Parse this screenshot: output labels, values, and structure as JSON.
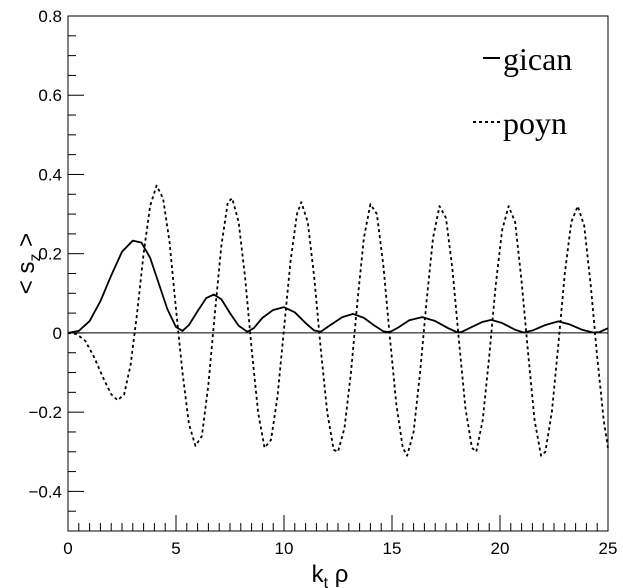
{
  "chart_data": {
    "type": "line",
    "title": "",
    "xlabel": {
      "main": "k",
      "sub": "t",
      "tail": " ρ"
    },
    "ylabel": {
      "open": "< s",
      "sub": "z",
      "close": " >"
    },
    "xlim": [
      0,
      25
    ],
    "ylim": [
      -0.5,
      0.8
    ],
    "x_ticks": [
      "0",
      "5",
      "10",
      "15",
      "20",
      "25"
    ],
    "y_ticks": [
      "−0.4",
      "−0.2",
      "0",
      "0.2",
      "0.4",
      "0.6",
      "0.8"
    ],
    "grid": false,
    "legend_position": "top-right",
    "zero_line": true,
    "series": [
      {
        "name": "gican",
        "style": "solid",
        "points": [
          [
            0,
            0
          ],
          [
            0.5,
            0.005
          ],
          [
            1.0,
            0.03
          ],
          [
            1.5,
            0.08
          ],
          [
            2.0,
            0.145
          ],
          [
            2.5,
            0.205
          ],
          [
            3.0,
            0.233
          ],
          [
            3.4,
            0.228
          ],
          [
            3.8,
            0.19
          ],
          [
            4.2,
            0.125
          ],
          [
            4.6,
            0.06
          ],
          [
            5.0,
            0.015
          ],
          [
            5.3,
            0.005
          ],
          [
            5.6,
            0.02
          ],
          [
            6.0,
            0.055
          ],
          [
            6.4,
            0.088
          ],
          [
            6.75,
            0.097
          ],
          [
            7.1,
            0.085
          ],
          [
            7.5,
            0.05
          ],
          [
            7.9,
            0.018
          ],
          [
            8.3,
            0.003
          ],
          [
            8.6,
            0.012
          ],
          [
            9.0,
            0.038
          ],
          [
            9.5,
            0.058
          ],
          [
            10.0,
            0.065
          ],
          [
            10.5,
            0.052
          ],
          [
            11.0,
            0.025
          ],
          [
            11.4,
            0.006
          ],
          [
            11.7,
            0.003
          ],
          [
            12.1,
            0.018
          ],
          [
            12.7,
            0.04
          ],
          [
            13.2,
            0.048
          ],
          [
            13.7,
            0.038
          ],
          [
            14.2,
            0.018
          ],
          [
            14.6,
            0.004
          ],
          [
            14.9,
            0.002
          ],
          [
            15.3,
            0.014
          ],
          [
            15.8,
            0.032
          ],
          [
            16.4,
            0.04
          ],
          [
            17.0,
            0.03
          ],
          [
            17.6,
            0.012
          ],
          [
            18.0,
            0.002
          ],
          [
            18.2,
            0.002
          ],
          [
            18.7,
            0.015
          ],
          [
            19.2,
            0.028
          ],
          [
            19.6,
            0.033
          ],
          [
            20.1,
            0.025
          ],
          [
            20.7,
            0.008
          ],
          [
            21.1,
            0.001
          ],
          [
            21.5,
            0.006
          ],
          [
            22.1,
            0.02
          ],
          [
            22.7,
            0.029
          ],
          [
            23.2,
            0.022
          ],
          [
            23.8,
            0.008
          ],
          [
            24.3,
            0.001
          ],
          [
            24.6,
            0.002
          ],
          [
            25.0,
            0.012
          ]
        ]
      },
      {
        "name": "poyn",
        "style": "dashed",
        "points": [
          [
            0,
            0
          ],
          [
            0.4,
            -0.003
          ],
          [
            0.8,
            -0.02
          ],
          [
            1.2,
            -0.06
          ],
          [
            1.6,
            -0.11
          ],
          [
            2.0,
            -0.155
          ],
          [
            2.3,
            -0.17
          ],
          [
            2.6,
            -0.155
          ],
          [
            2.9,
            -0.08
          ],
          [
            3.2,
            0.05
          ],
          [
            3.5,
            0.2
          ],
          [
            3.8,
            0.32
          ],
          [
            4.1,
            0.372
          ],
          [
            4.4,
            0.34
          ],
          [
            4.7,
            0.23
          ],
          [
            5.0,
            0.06
          ],
          [
            5.3,
            -0.1
          ],
          [
            5.6,
            -0.23
          ],
          [
            5.9,
            -0.285
          ],
          [
            6.2,
            -0.26
          ],
          [
            6.5,
            -0.13
          ],
          [
            6.8,
            0.05
          ],
          [
            7.1,
            0.22
          ],
          [
            7.4,
            0.33
          ],
          [
            7.6,
            0.34
          ],
          [
            7.9,
            0.28
          ],
          [
            8.2,
            0.14
          ],
          [
            8.5,
            -0.04
          ],
          [
            8.8,
            -0.2
          ],
          [
            9.1,
            -0.29
          ],
          [
            9.4,
            -0.27
          ],
          [
            9.7,
            -0.16
          ],
          [
            10.0,
            0.01
          ],
          [
            10.3,
            0.18
          ],
          [
            10.6,
            0.3
          ],
          [
            10.8,
            0.33
          ],
          [
            11.1,
            0.28
          ],
          [
            11.4,
            0.14
          ],
          [
            11.7,
            -0.04
          ],
          [
            12.0,
            -0.2
          ],
          [
            12.3,
            -0.295
          ],
          [
            12.5,
            -0.3
          ],
          [
            12.8,
            -0.24
          ],
          [
            13.1,
            -0.1
          ],
          [
            13.4,
            0.08
          ],
          [
            13.7,
            0.24
          ],
          [
            14.0,
            0.325
          ],
          [
            14.3,
            0.3
          ],
          [
            14.6,
            0.17
          ],
          [
            14.9,
            -0.01
          ],
          [
            15.2,
            -0.18
          ],
          [
            15.5,
            -0.29
          ],
          [
            15.7,
            -0.31
          ],
          [
            16.0,
            -0.25
          ],
          [
            16.3,
            -0.1
          ],
          [
            16.6,
            0.08
          ],
          [
            16.9,
            0.24
          ],
          [
            17.2,
            0.32
          ],
          [
            17.5,
            0.29
          ],
          [
            17.8,
            0.16
          ],
          [
            18.1,
            -0.02
          ],
          [
            18.4,
            -0.19
          ],
          [
            18.7,
            -0.29
          ],
          [
            18.9,
            -0.3
          ],
          [
            19.2,
            -0.22
          ],
          [
            19.5,
            -0.06
          ],
          [
            19.8,
            0.12
          ],
          [
            20.1,
            0.26
          ],
          [
            20.4,
            0.32
          ],
          [
            20.7,
            0.28
          ],
          [
            21.0,
            0.13
          ],
          [
            21.3,
            -0.05
          ],
          [
            21.6,
            -0.22
          ],
          [
            21.9,
            -0.31
          ],
          [
            22.1,
            -0.3
          ],
          [
            22.4,
            -0.2
          ],
          [
            22.7,
            -0.03
          ],
          [
            23.0,
            0.15
          ],
          [
            23.3,
            0.28
          ],
          [
            23.6,
            0.32
          ],
          [
            23.9,
            0.27
          ],
          [
            24.2,
            0.12
          ],
          [
            24.5,
            -0.06
          ],
          [
            24.8,
            -0.22
          ],
          [
            25.0,
            -0.29
          ]
        ]
      }
    ]
  }
}
